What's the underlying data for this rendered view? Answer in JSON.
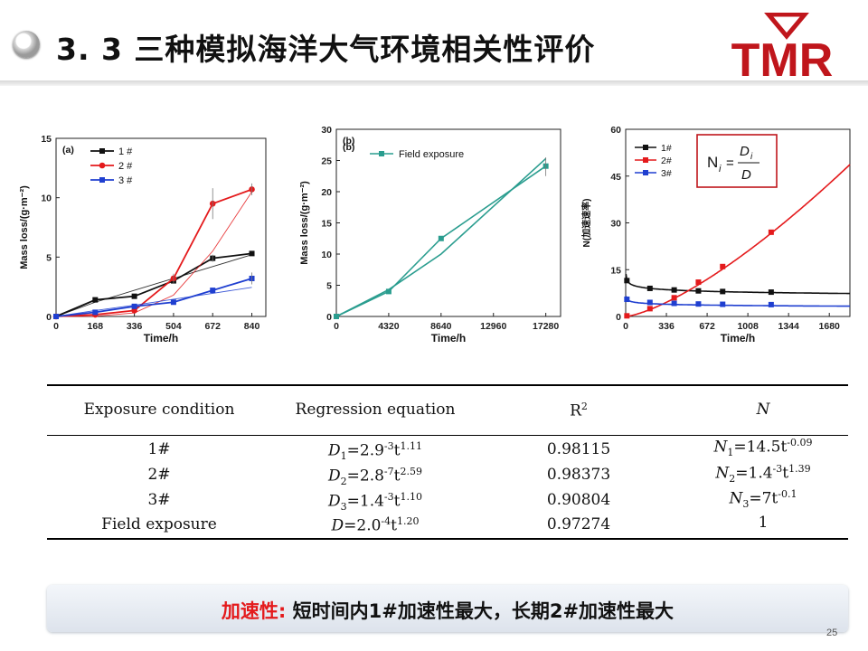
{
  "header": {
    "title": "3. 3 三种模拟海洋大气环境相关性评价",
    "logo_text": "TMR"
  },
  "colors": {
    "s1": "#111111",
    "s2": "#e41a1c",
    "s3": "#1f3fd0",
    "field": "#2a9d8f",
    "red_accent": "#e41a1c"
  },
  "chart_data": [
    {
      "type": "line",
      "panel_label": "(a)",
      "xlabel": "Time/h",
      "ylabel": "Mass loss/(g·m⁻²)",
      "x_ticks": [
        0,
        168,
        336,
        504,
        672,
        840
      ],
      "y_ticks": [
        0,
        5,
        10,
        15
      ],
      "xlim": [
        0,
        900
      ],
      "ylim": [
        0,
        15
      ],
      "series": [
        {
          "name": "1 #",
          "color": "#111111",
          "marker": "square",
          "x": [
            0,
            168,
            336,
            504,
            672,
            840
          ],
          "y": [
            0,
            1.4,
            1.7,
            3.0,
            4.9,
            5.3
          ],
          "fit_y": [
            0,
            1.2,
            2.2,
            3.2,
            4.2,
            5.2
          ]
        },
        {
          "name": "2 #",
          "color": "#e41a1c",
          "marker": "circle",
          "x": [
            0,
            168,
            336,
            504,
            672,
            840
          ],
          "y": [
            0,
            0.15,
            0.5,
            3.2,
            9.5,
            10.7
          ],
          "fit_y": [
            0,
            0.02,
            0.3,
            1.8,
            5.5,
            10.5
          ]
        },
        {
          "name": "3 #",
          "color": "#1f3fd0",
          "marker": "square",
          "x": [
            0,
            168,
            336,
            504,
            672,
            840
          ],
          "y": [
            0,
            0.35,
            0.85,
            1.2,
            2.2,
            3.2
          ],
          "fit_y": [
            0,
            0.5,
            0.95,
            1.45,
            1.95,
            2.45
          ]
        }
      ]
    },
    {
      "type": "line",
      "panel_label": "(b)",
      "xlabel": "Time/h",
      "ylabel": "Mass loss/(g·m⁻²)",
      "x_ticks": [
        0,
        4320,
        8640,
        12960,
        17280
      ],
      "y_ticks": [
        0,
        5,
        10,
        15,
        20,
        25,
        30
      ],
      "xlim": [
        0,
        18500
      ],
      "ylim": [
        0,
        30
      ],
      "series": [
        {
          "name": "Field exposure",
          "color": "#2a9d8f",
          "marker": "square",
          "x": [
            0,
            4320,
            8640,
            17280
          ],
          "y": [
            0,
            4.0,
            12.5,
            24.1
          ],
          "fit_y": [
            0,
            4.3,
            10.0,
            25.3
          ]
        }
      ]
    },
    {
      "type": "line",
      "panel_label": "",
      "xlabel": "Time/h",
      "ylabel": "N(加速速率)",
      "x_ticks": [
        0,
        336,
        672,
        1008,
        1344,
        1680
      ],
      "y_ticks": [
        0,
        15,
        30,
        45,
        60
      ],
      "xlim": [
        0,
        1850
      ],
      "ylim": [
        0,
        60
      ],
      "formula": "N_i = D_i / D",
      "series": [
        {
          "name": "1#",
          "color": "#111111",
          "marker": "square",
          "x": [
            10,
            200,
            400,
            600,
            800,
            1200
          ],
          "y": [
            11.5,
            9.0,
            8.5,
            8.2,
            8.0,
            7.8
          ],
          "formula": "14.5*t^-0.09"
        },
        {
          "name": "2#",
          "color": "#e41a1c",
          "marker": "square",
          "x": [
            10,
            200,
            400,
            600,
            800,
            1200
          ],
          "y": [
            0.2,
            2.5,
            6.0,
            11.0,
            16.0,
            27.0
          ],
          "formula": "0.0014*t^1.39"
        },
        {
          "name": "3#",
          "color": "#1f3fd0",
          "marker": "square",
          "x": [
            10,
            200,
            400,
            600,
            800,
            1200
          ],
          "y": [
            5.5,
            4.5,
            4.2,
            4.0,
            3.9,
            3.8
          ],
          "formula": "7*t^-0.1"
        }
      ]
    }
  ],
  "table": {
    "headers": {
      "condition": "Exposure condition",
      "regression": "Regression equation",
      "r2": "R",
      "r2_sup": "2",
      "n": "N"
    },
    "rows": [
      {
        "condition": "1#",
        "d_var": "D",
        "d_sub": "1",
        "d_coef": "=2.9",
        "d_exp1": "-3",
        "d_t": "t",
        "d_exp2": "1.11",
        "r2": "0.98115",
        "n_var": "N",
        "n_sub": "1",
        "n_coef": "=14.5t",
        "n_exp": "-0.09"
      },
      {
        "condition": "2#",
        "d_var": "D",
        "d_sub": "2",
        "d_coef": "=2.8",
        "d_exp1": "-7",
        "d_t": "t",
        "d_exp2": "2.59",
        "r2": "0.98373",
        "n_var": "N",
        "n_sub": "2",
        "n_coef": "=1.4",
        "n_exp": "-3",
        "n_t": "t",
        "n_exp2": "1.39"
      },
      {
        "condition": "3#",
        "d_var": "D",
        "d_sub": "3",
        "d_coef": "=1.4",
        "d_exp1": "-3",
        "d_t": "t",
        "d_exp2": "1.10",
        "r2": "0.90804",
        "n_var": "N",
        "n_sub": "3",
        "n_coef": "=7t",
        "n_exp": "-0.1"
      },
      {
        "condition": "Field exposure",
        "d_var": "D",
        "d_sub": "",
        "d_coef": "=2.0",
        "d_exp1": "-4",
        "d_t": "t",
        "d_exp2": "1.20",
        "r2": "0.97274",
        "n_value": "1"
      }
    ]
  },
  "conclusion": {
    "key": "加速性:",
    "text": " 短时间内1#加速性最大，长期2#加速性最大"
  },
  "page_number": "25"
}
